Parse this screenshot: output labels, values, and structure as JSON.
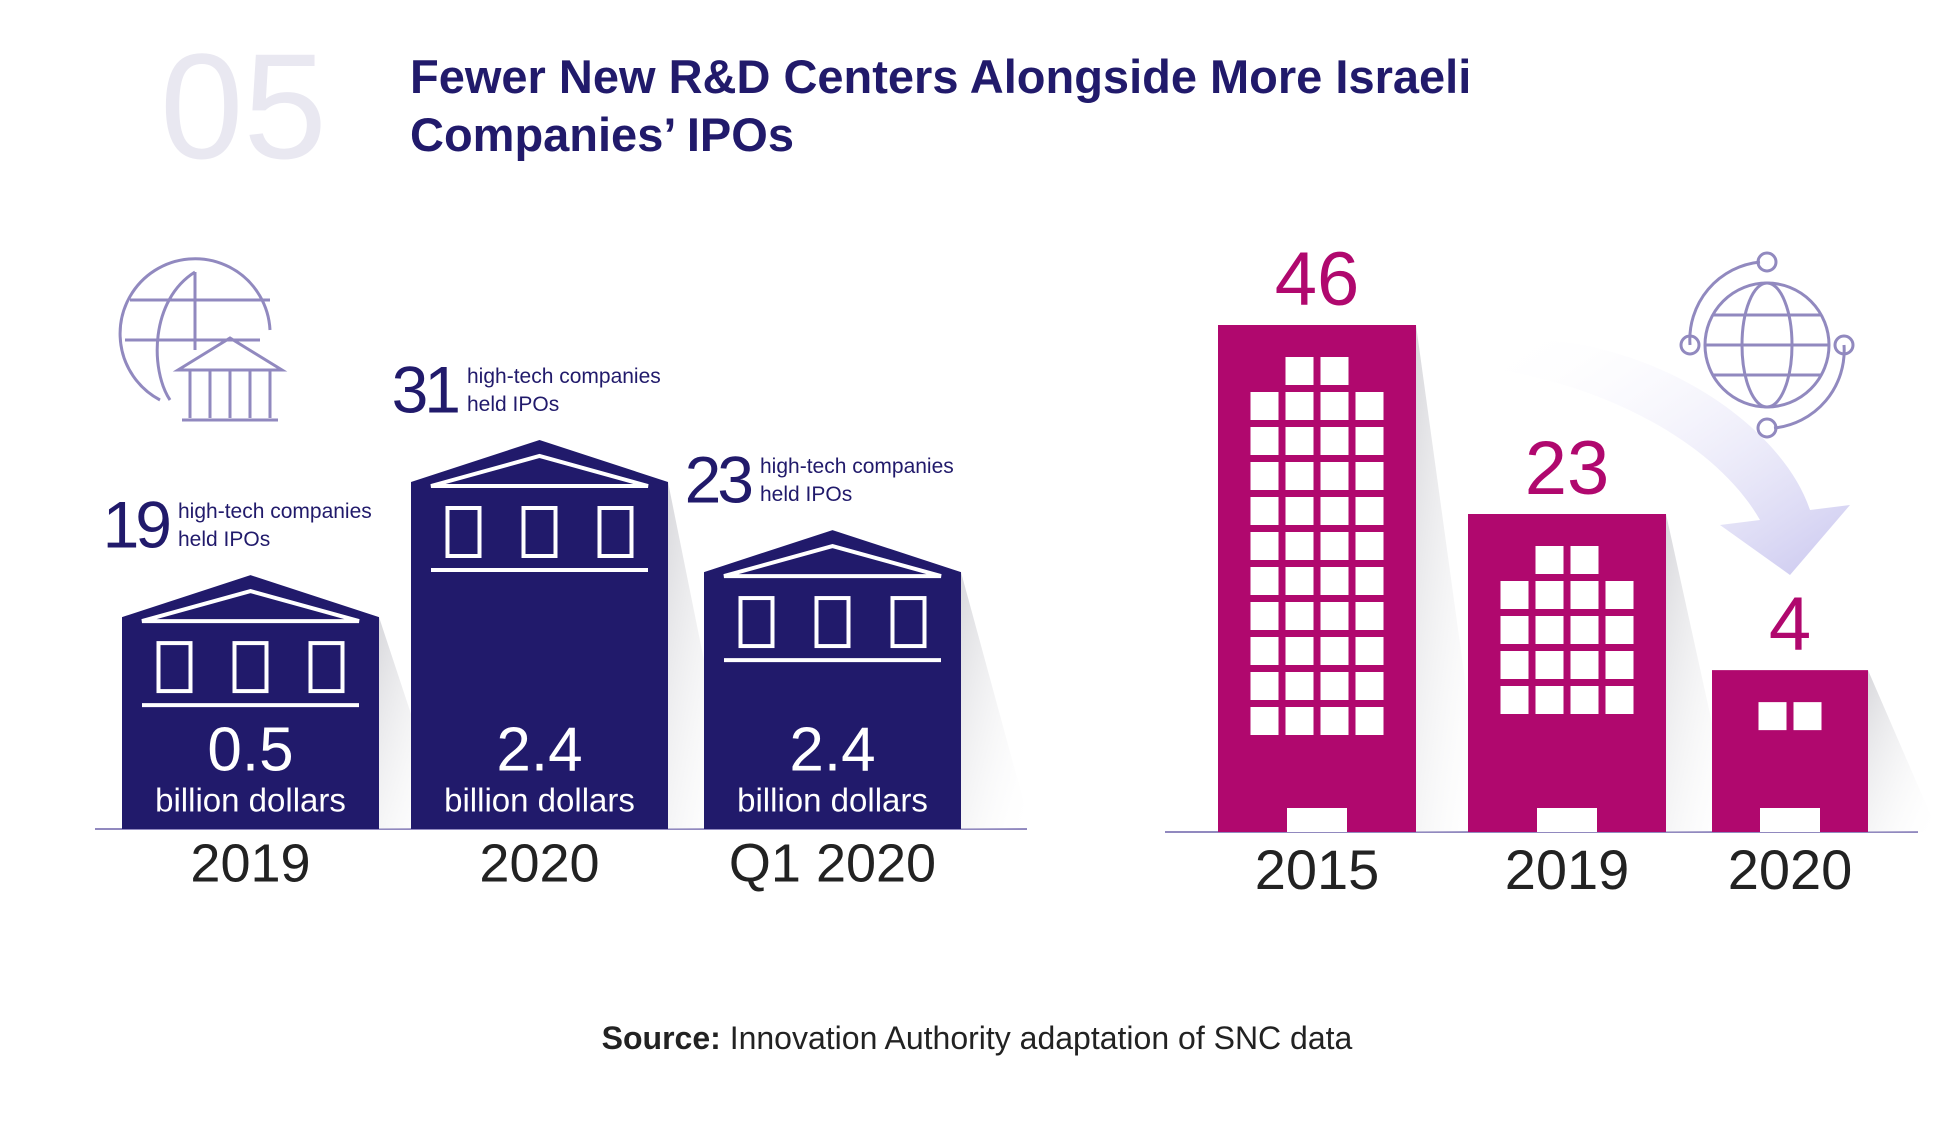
{
  "header": {
    "number": "05",
    "title": "Fewer New R&D Centers Alongside More Israeli Companies’ IPOs"
  },
  "chart_data": [
    {
      "type": "ipo-bar",
      "categories": [
        "2019",
        "2020",
        "Q1 2020"
      ],
      "values": [
        19,
        31,
        23
      ],
      "value_note": "high-tech companies held IPOs",
      "amounts": [
        0.5,
        2.4,
        2.4
      ],
      "amount_unit": "billion dollars",
      "color": "#211a6b"
    },
    {
      "type": "building-bar",
      "categories": [
        "2015",
        "2019",
        "2020"
      ],
      "values": [
        46,
        23,
        4
      ],
      "color": "#b0086e"
    }
  ],
  "source": {
    "label": "Source:",
    "text": "Innovation Authority adaptation of SNC data"
  }
}
